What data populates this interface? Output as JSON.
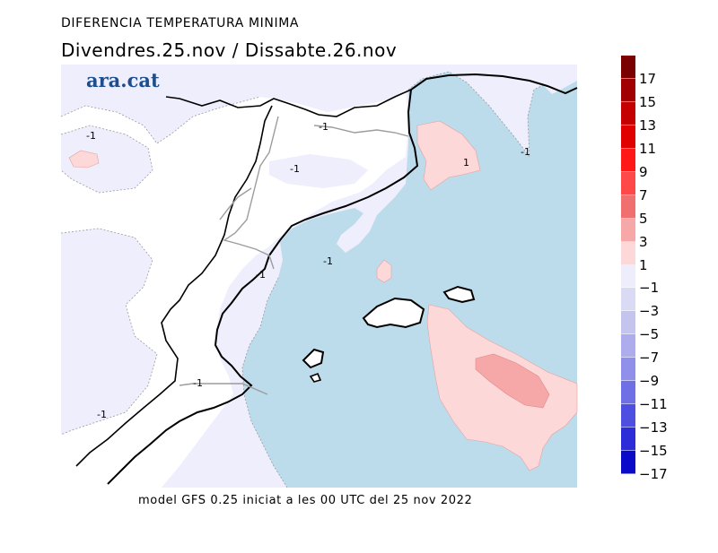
{
  "header": {
    "title": "DIFERENCIA TEMPERATURA MINIMA",
    "subtitle": "Divendres.25.nov / Dissabte.26.nov"
  },
  "brand": {
    "logo_text": "ara.cat"
  },
  "footer": {
    "text": "model GFS 0.25 iniciat a les 00 UTC del 25 nov 2022"
  },
  "map": {
    "contour_labels": [
      "-1",
      "-1",
      "-1",
      "-1",
      "-1",
      "-1",
      "-1",
      "-1",
      "1"
    ]
  },
  "legend": {
    "positive": [
      {
        "label": "17",
        "color": "#7a0000"
      },
      {
        "label": "15",
        "color": "#a00000"
      },
      {
        "label": "13",
        "color": "#c40000"
      },
      {
        "label": "11",
        "color": "#e00000"
      },
      {
        "label": "9",
        "color": "#ff1818"
      },
      {
        "label": "7",
        "color": "#ff4848"
      },
      {
        "label": "5",
        "color": "#f07070"
      },
      {
        "label": "3",
        "color": "#f6a8a8"
      },
      {
        "label": "1",
        "color": "#fcd8d8"
      }
    ],
    "negative": [
      {
        "label": "-1",
        "color": "#ededfb"
      },
      {
        "label": "-3",
        "color": "#dadaf5"
      },
      {
        "label": "-5",
        "color": "#c4c4ef"
      },
      {
        "label": "-7",
        "color": "#adaded"
      },
      {
        "label": "-9",
        "color": "#9090ea"
      },
      {
        "label": "-11",
        "color": "#7070e6"
      },
      {
        "label": "-13",
        "color": "#4e4ee0"
      },
      {
        "label": "-15",
        "color": "#2c2cd8"
      },
      {
        "label": "-17",
        "color": "#0a0ac8"
      }
    ]
  }
}
